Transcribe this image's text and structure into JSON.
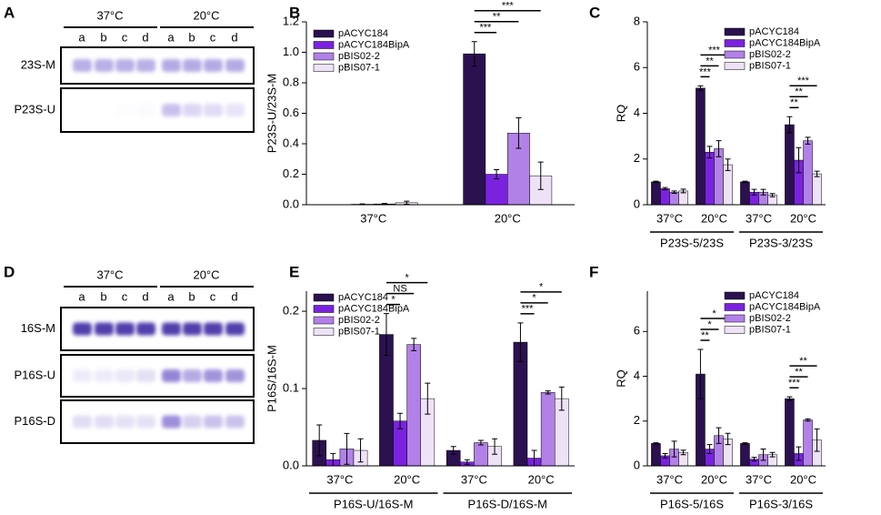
{
  "gels": [
    {
      "panel": "A",
      "temps": [
        "37°C",
        "20°C"
      ],
      "lanes": [
        "a",
        "b",
        "c",
        "d",
        "a",
        "b",
        "c",
        "d"
      ],
      "rows": [
        "23S-M",
        "P23S-U"
      ]
    },
    {
      "panel": "D",
      "temps": [
        "37°C",
        "20°C"
      ],
      "lanes": [
        "a",
        "b",
        "c",
        "d",
        "a",
        "b",
        "c",
        "d"
      ],
      "rows": [
        "16S-M",
        "P16S-U",
        "P16S-D"
      ]
    }
  ],
  "chart_data": [
    {
      "type": "bar",
      "panel": "B",
      "ylabel": "P23S-U/23S-M",
      "categories": [
        "37°C",
        "20°C"
      ],
      "ylim": [
        0,
        1.2
      ],
      "yticks": [
        {
          "value": 0,
          "label": "0.0"
        },
        0.2,
        0.4,
        0.6,
        0.8,
        {
          "value": 1,
          "label": "1.0"
        },
        1.2
      ],
      "series": [
        {
          "name": "pACYC184",
          "color": "#2b1150",
          "values": [
            0,
            0.99
          ],
          "errors": [
            0,
            0.08
          ],
          "significance": [
            null,
            null
          ]
        },
        {
          "name": "pACYC184BipA",
          "color": "#7b22e0",
          "values": [
            0.003,
            0.2
          ],
          "errors": [
            0.002,
            0.03
          ],
          "significance": [
            null,
            "***"
          ]
        },
        {
          "name": "pBIS02-2",
          "color": "#b281e8",
          "values": [
            0.005,
            0.47
          ],
          "errors": [
            0.003,
            0.1
          ],
          "significance": [
            null,
            "**"
          ]
        },
        {
          "name": "pBIS07-1",
          "color": "#eee2f6",
          "values": [
            0.013,
            0.19
          ],
          "errors": [
            0.01,
            0.09
          ],
          "significance": [
            null,
            "***"
          ]
        }
      ]
    },
    {
      "type": "bar",
      "panel": "C",
      "ylabel": "RQ",
      "categories": [
        "37°C",
        "20°C",
        "37°C",
        "20°C"
      ],
      "groups": [
        "P23S-5/23S",
        "P23S-3/23S"
      ],
      "ylim": [
        0,
        8
      ],
      "yticks": [
        0,
        2,
        4,
        6,
        8
      ],
      "series": [
        {
          "name": "pACYC184",
          "color": "#2b1150",
          "values": [
            1.0,
            5.1,
            1.0,
            3.5
          ],
          "errors": [
            0.03,
            0.1,
            0.03,
            0.35
          ],
          "significance": [
            null,
            null,
            null,
            null
          ]
        },
        {
          "name": "pACYC184BipA",
          "color": "#7b22e0",
          "values": [
            0.7,
            2.3,
            0.55,
            1.95
          ],
          "errors": [
            0.05,
            0.25,
            0.12,
            0.55
          ],
          "significance": [
            null,
            "***",
            null,
            "**"
          ]
        },
        {
          "name": "pBIS02-2",
          "color": "#b281e8",
          "values": [
            0.55,
            2.45,
            0.55,
            2.8
          ],
          "errors": [
            0.05,
            0.35,
            0.12,
            0.15
          ],
          "significance": [
            null,
            "**",
            null,
            "**"
          ]
        },
        {
          "name": "pBIS07-1",
          "color": "#eee2f6",
          "values": [
            0.6,
            1.75,
            0.42,
            1.35
          ],
          "errors": [
            0.08,
            0.25,
            0.07,
            0.12
          ],
          "significance": [
            null,
            "***",
            null,
            "***"
          ]
        }
      ]
    },
    {
      "type": "bar",
      "panel": "E",
      "ylabel": "P16S/16S-M",
      "categories": [
        "37°C",
        "20°C",
        "37°C",
        "20°C"
      ],
      "groups": [
        "P16S-U/16S-M",
        "P16S-D/16S-M"
      ],
      "ylim": [
        0,
        0.226
      ],
      "yticks": [
        {
          "value": 0,
          "label": "0.0"
        },
        0.1,
        0.2
      ],
      "series": [
        {
          "name": "pACYC184",
          "color": "#2b1150",
          "values": [
            0.033,
            0.17,
            0.02,
            0.16
          ],
          "errors": [
            0.02,
            0.027,
            0.005,
            0.025
          ],
          "significance": [
            null,
            null,
            null,
            null
          ]
        },
        {
          "name": "pACYC184BipA",
          "color": "#7b22e0",
          "values": [
            0.008,
            0.058,
            0.005,
            0.01
          ],
          "errors": [
            0.008,
            0.01,
            0.003,
            0.01
          ],
          "significance": [
            null,
            "*",
            null,
            "***"
          ]
        },
        {
          "name": "pBIS02-2",
          "color": "#b281e8",
          "values": [
            0.022,
            0.157,
            0.03,
            0.095
          ],
          "errors": [
            0.02,
            0.008,
            0.003,
            0.002
          ],
          "significance": [
            null,
            "NS",
            null,
            "*"
          ]
        },
        {
          "name": "pBIS07-1",
          "color": "#eee2f6",
          "values": [
            0.02,
            0.087,
            0.025,
            0.087
          ],
          "errors": [
            0.015,
            0.02,
            0.01,
            0.015
          ],
          "significance": [
            null,
            "*",
            null,
            "*"
          ]
        }
      ]
    },
    {
      "type": "bar",
      "panel": "F",
      "ylabel": "RQ",
      "categories": [
        "37°C",
        "20°C",
        "37°C",
        "20°C"
      ],
      "groups": [
        "P16S-5/16S",
        "P16S-3/16S"
      ],
      "ylim": [
        0,
        7.8
      ],
      "yticks": [
        0,
        2,
        4,
        6
      ],
      "series": [
        {
          "name": "pACYC184",
          "color": "#2b1150",
          "values": [
            1.0,
            4.1,
            1.0,
            3.0
          ],
          "errors": [
            0.03,
            1.1,
            0.03,
            0.08
          ],
          "significance": [
            null,
            null,
            null,
            null
          ]
        },
        {
          "name": "pACYC184BipA",
          "color": "#7b22e0",
          "values": [
            0.45,
            0.75,
            0.3,
            0.55
          ],
          "errors": [
            0.1,
            0.2,
            0.08,
            0.3
          ],
          "significance": [
            null,
            "**",
            null,
            "***"
          ]
        },
        {
          "name": "pBIS02-2",
          "color": "#b281e8",
          "values": [
            0.75,
            1.35,
            0.5,
            2.05
          ],
          "errors": [
            0.35,
            0.35,
            0.25,
            0.05
          ],
          "significance": [
            null,
            "*",
            null,
            "**"
          ]
        },
        {
          "name": "pBIS07-1",
          "color": "#eee2f6",
          "values": [
            0.6,
            1.2,
            0.5,
            1.15
          ],
          "errors": [
            0.1,
            0.25,
            0.1,
            0.5
          ],
          "significance": [
            null,
            "*",
            null,
            "**"
          ]
        }
      ]
    }
  ]
}
